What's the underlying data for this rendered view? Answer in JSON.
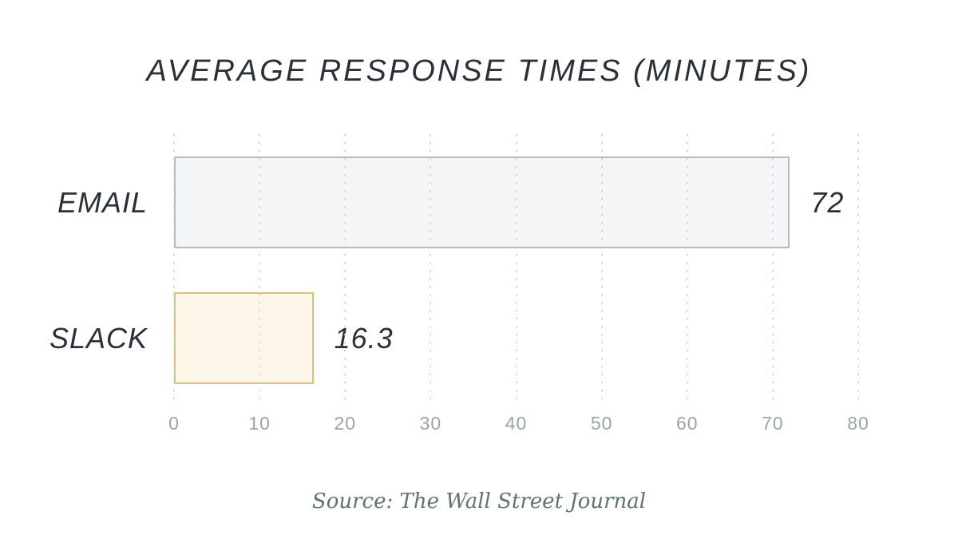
{
  "chart_data": {
    "type": "bar",
    "orientation": "horizontal",
    "title": "AVERAGE RESPONSE TIMES (MINUTES)",
    "categories": [
      "EMAIL",
      "SLACK"
    ],
    "values": [
      72,
      16.3
    ],
    "value_labels": [
      "72",
      "16.3"
    ],
    "xlim": [
      0,
      80
    ],
    "x_ticks": [
      0,
      10,
      20,
      30,
      40,
      50,
      60,
      70,
      80
    ],
    "grid": "dotted-vertical",
    "legend": "none",
    "xlabel": "",
    "ylabel": "",
    "source": "Source: The Wall Street Journal"
  },
  "colors": {
    "text_dark": "#2a3038",
    "tick_label": "#9aa3a8",
    "grid_dot": "#ccd1d4",
    "source_text": "#5f7470",
    "bars": [
      {
        "name": "email-bar",
        "fill": "#f4f5f6",
        "border": "#b2bbc0"
      },
      {
        "name": "slack-bar",
        "fill": "#fdf6e9",
        "border": "#e2bd77"
      }
    ]
  }
}
